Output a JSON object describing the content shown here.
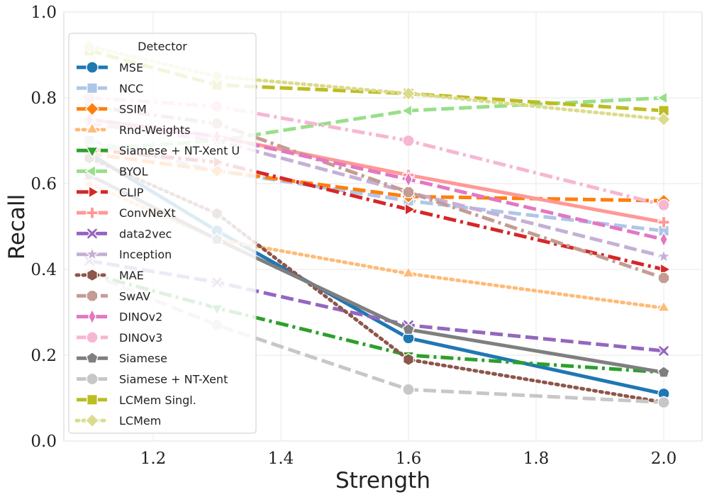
{
  "chart_data": {
    "type": "line",
    "xlabel": "Strength",
    "ylabel": "Recall",
    "xlim": [
      1.06,
      2.06
    ],
    "ylim": [
      0.0,
      1.0
    ],
    "xticks": [
      1.2,
      1.4,
      1.6,
      1.8,
      2.0
    ],
    "xtick_labels": [
      "1.2",
      "1.4",
      "1.6",
      "1.8",
      "2.0"
    ],
    "yticks": [
      0.0,
      0.2,
      0.4,
      0.6,
      0.8,
      1.0
    ],
    "ytick_labels": [
      "0.0",
      "0.2",
      "0.4",
      "0.6",
      "0.8",
      "1.0"
    ],
    "grid": true,
    "legend_title": "Detector",
    "legend_position": "upper-left",
    "x": [
      1.1,
      1.3,
      1.6,
      2.0
    ],
    "series": [
      {
        "name": "MSE",
        "values": [
          0.67,
          0.49,
          0.24,
          0.11
        ],
        "color": "#1f77b4",
        "dash": "solid",
        "marker": "circle"
      },
      {
        "name": "NCC",
        "values": [
          0.7,
          0.63,
          0.56,
          0.49
        ],
        "color": "#aec7e8",
        "dash": "dashed",
        "marker": "square"
      },
      {
        "name": "SSIM",
        "values": [
          0.67,
          0.63,
          0.57,
          0.56
        ],
        "color": "#ff7f0e",
        "dash": "dashed",
        "marker": "diamond"
      },
      {
        "name": "Rnd-Weights",
        "values": [
          0.6,
          0.47,
          0.39,
          0.31
        ],
        "color": "#ffbb78",
        "dash": "dotted",
        "marker": "triangle-up"
      },
      {
        "name": "Siamese + NT-Xent U",
        "values": [
          0.39,
          0.31,
          0.2,
          0.16
        ],
        "color": "#2ca02c",
        "dash": "dashdot",
        "marker": "triangle-down"
      },
      {
        "name": "BYOL",
        "values": [
          0.68,
          0.7,
          0.77,
          0.8
        ],
        "color": "#98df8a",
        "dash": "dashed",
        "marker": "triangle-left"
      },
      {
        "name": "CLIP",
        "values": [
          0.68,
          0.65,
          0.54,
          0.4
        ],
        "color": "#d62728",
        "dash": "dashdot",
        "marker": "triangle-right"
      },
      {
        "name": "ConvNeXt",
        "values": [
          0.75,
          0.71,
          0.62,
          0.51
        ],
        "color": "#ff9896",
        "dash": "solid",
        "marker": "plus"
      },
      {
        "name": "data2vec",
        "values": [
          0.42,
          0.37,
          0.27,
          0.21
        ],
        "color": "#9467bd",
        "dash": "dashed",
        "marker": "x"
      },
      {
        "name": "Inception",
        "values": [
          0.74,
          0.7,
          0.58,
          0.43
        ],
        "color": "#c5b0d5",
        "dash": "dashed",
        "marker": "star"
      },
      {
        "name": "MAE",
        "values": [
          0.66,
          0.53,
          0.19,
          0.09
        ],
        "color": "#8c564b",
        "dash": "dotted",
        "marker": "hexagon"
      },
      {
        "name": "SwAV",
        "values": [
          0.78,
          0.74,
          0.58,
          0.38
        ],
        "color": "#c49c94",
        "dash": "dashdot",
        "marker": "octagon"
      },
      {
        "name": "DINOv2",
        "values": [
          0.75,
          0.71,
          0.61,
          0.47
        ],
        "color": "#e377c2",
        "dash": "dashed",
        "marker": "thin-diamond"
      },
      {
        "name": "DINOv3",
        "values": [
          0.8,
          0.78,
          0.7,
          0.55
        ],
        "color": "#f7b6d2",
        "dash": "dashdot",
        "marker": "circle"
      },
      {
        "name": "Siamese",
        "values": [
          0.62,
          0.47,
          0.26,
          0.16
        ],
        "color": "#7f7f7f",
        "dash": "solid",
        "marker": "pentagon"
      },
      {
        "name": "Siamese + NT-Xent",
        "values": [
          0.39,
          0.27,
          0.12,
          0.09
        ],
        "color": "#c7c7c7",
        "dash": "dashed",
        "marker": "circle"
      },
      {
        "name": "LCMem Singl.",
        "values": [
          0.91,
          0.83,
          0.81,
          0.77
        ],
        "color": "#bcbd22",
        "dash": "dashed",
        "marker": "square"
      },
      {
        "name": "LCMem",
        "values": [
          0.92,
          0.85,
          0.81,
          0.75
        ],
        "color": "#dbdb8d",
        "dash": "dotted",
        "marker": "diamond"
      }
    ]
  }
}
